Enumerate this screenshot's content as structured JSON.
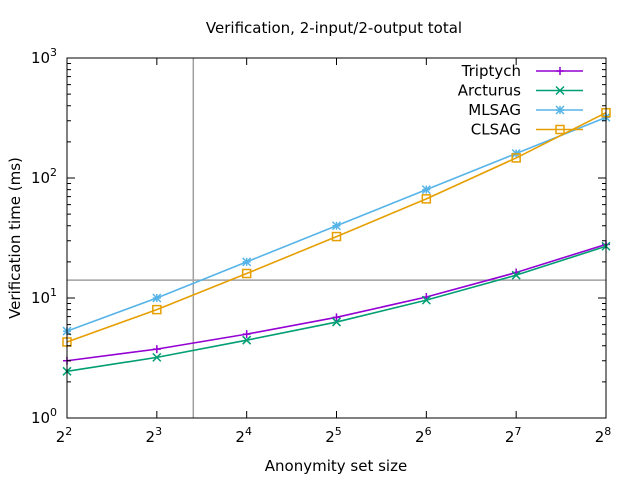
{
  "chart_data": {
    "type": "line",
    "title": "Verification, 2-input/2-output total",
    "xlabel": "Anonymity set size",
    "ylabel": "Verification time (ms)",
    "x_scale": "log2",
    "y_scale": "log10",
    "xlim": [
      4,
      256
    ],
    "ylim": [
      1,
      1000
    ],
    "x_ticks": [
      {
        "base": "2",
        "exp": "2",
        "value": 4
      },
      {
        "base": "2",
        "exp": "3",
        "value": 8
      },
      {
        "base": "2",
        "exp": "4",
        "value": 16
      },
      {
        "base": "2",
        "exp": "5",
        "value": 32
      },
      {
        "base": "2",
        "exp": "6",
        "value": 64
      },
      {
        "base": "2",
        "exp": "7",
        "value": 128
      },
      {
        "base": "2",
        "exp": "8",
        "value": 256
      }
    ],
    "y_ticks": [
      {
        "base": "10",
        "exp": "0",
        "value": 1
      },
      {
        "base": "10",
        "exp": "1",
        "value": 10
      },
      {
        "base": "10",
        "exp": "2",
        "value": 100
      },
      {
        "base": "10",
        "exp": "3",
        "value": 1000
      }
    ],
    "reference_lines": [
      {
        "orientation": "vertical",
        "x": 10.6
      },
      {
        "orientation": "horizontal",
        "y": 14.1
      }
    ],
    "legend_position": "top-right",
    "x": [
      4,
      8,
      16,
      32,
      64,
      128,
      256
    ],
    "series": [
      {
        "name": "Triptych",
        "color": "#9400d3",
        "marker": "plus",
        "values": [
          3.0,
          3.75,
          5.0,
          6.9,
          10.2,
          16.3,
          28.0
        ]
      },
      {
        "name": "Arcturus",
        "color": "#009e73",
        "marker": "x",
        "values": [
          2.45,
          3.2,
          4.45,
          6.3,
          9.6,
          15.5,
          27.0
        ]
      },
      {
        "name": "MLSAG",
        "color": "#56b4e9",
        "marker": "star",
        "values": [
          5.3,
          10.0,
          20.0,
          40.0,
          80.0,
          160.0,
          320.0
        ]
      },
      {
        "name": "CLSAG",
        "color": "#e69f00",
        "marker": "square",
        "values": [
          4.3,
          8.0,
          16.0,
          32.5,
          67.0,
          147.0,
          350.0
        ]
      }
    ]
  }
}
